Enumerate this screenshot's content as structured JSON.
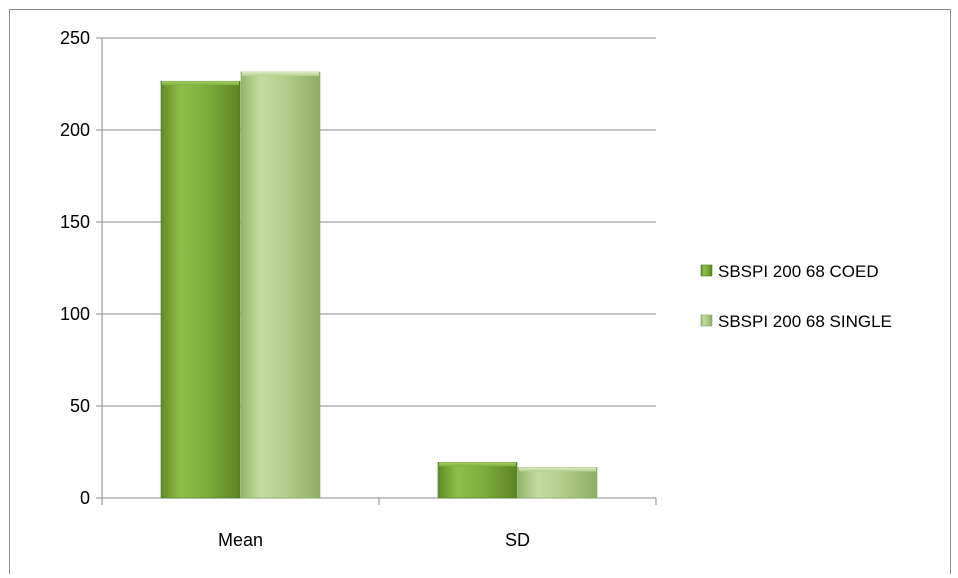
{
  "chart_data": {
    "type": "bar",
    "title": "",
    "xlabel": "",
    "ylabel": "",
    "categories": [
      "Mean",
      "SD"
    ],
    "series": [
      {
        "name": "SBSPI 200 68 COED",
        "values": [
          226.5,
          19.4
        ],
        "color": "#79a93a"
      },
      {
        "name": "SBSPI 200 68 SINGLE",
        "values": [
          231.5,
          16.6
        ],
        "color": "#aecb84"
      }
    ],
    "ylim": [
      0,
      250
    ],
    "yticks": [
      0,
      50,
      100,
      150,
      200,
      250
    ],
    "grid": true,
    "legend_position": "right"
  }
}
